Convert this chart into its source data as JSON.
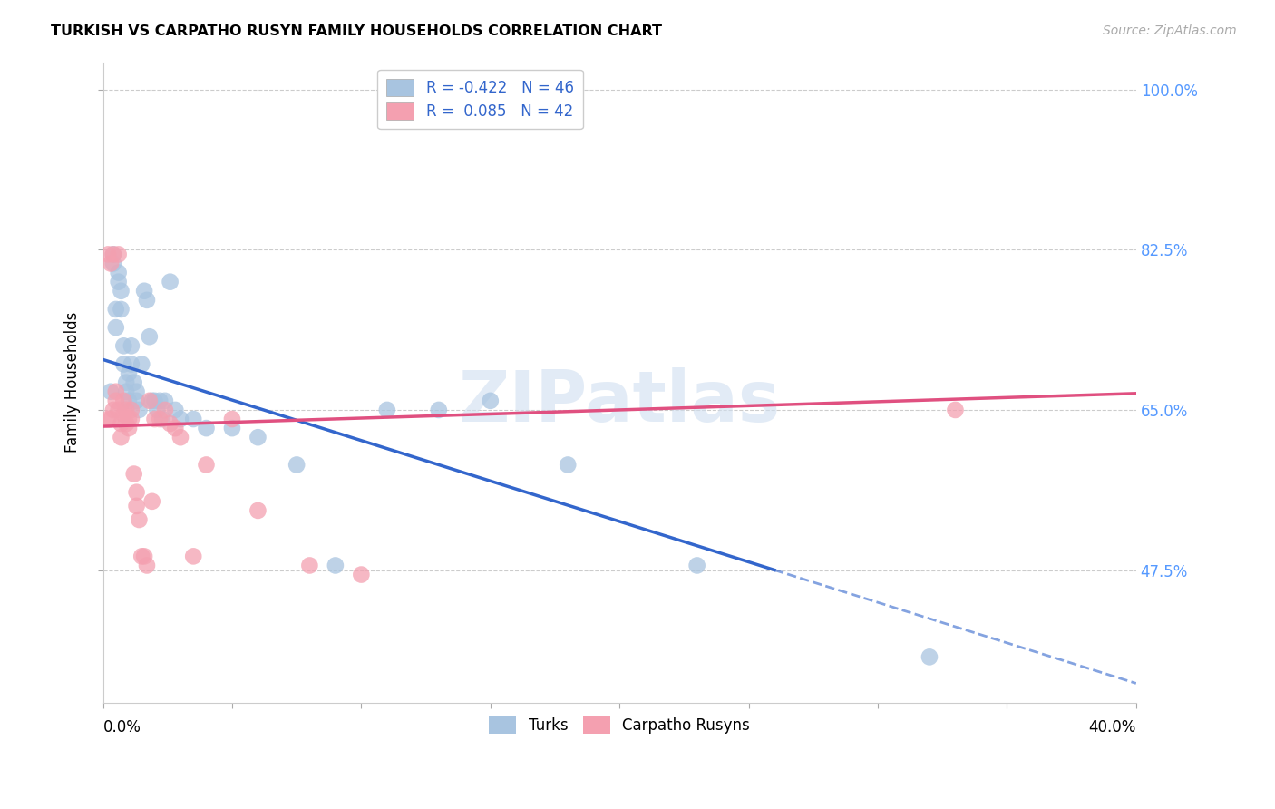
{
  "title": "TURKISH VS CARPATHO RUSYN FAMILY HOUSEHOLDS CORRELATION CHART",
  "source": "Source: ZipAtlas.com",
  "ylabel": "Family Households",
  "y_ticks": [
    0.475,
    0.65,
    0.825,
    1.0
  ],
  "y_tick_labels": [
    "47.5%",
    "65.0%",
    "82.5%",
    "100.0%"
  ],
  "x_range": [
    0.0,
    0.4
  ],
  "y_range": [
    0.33,
    1.03
  ],
  "turks_color": "#a8c4e0",
  "rusyn_color": "#f4a0b0",
  "trend_blue": "#3366cc",
  "trend_pink": "#e05080",
  "watermark": "ZIPatlas",
  "blue_line_x0": 0.0,
  "blue_line_y0": 0.705,
  "blue_line_x1": 0.26,
  "blue_line_y1": 0.475,
  "blue_line_solid_end": 0.26,
  "blue_line_dash_end": 0.4,
  "pink_line_x0": 0.0,
  "pink_line_y0": 0.632,
  "pink_line_x1": 0.4,
  "pink_line_y1": 0.668,
  "turks_x": [
    0.003,
    0.004,
    0.004,
    0.005,
    0.005,
    0.006,
    0.006,
    0.007,
    0.007,
    0.008,
    0.008,
    0.009,
    0.009,
    0.01,
    0.01,
    0.011,
    0.011,
    0.012,
    0.013,
    0.013,
    0.014,
    0.015,
    0.016,
    0.017,
    0.018,
    0.019,
    0.02,
    0.021,
    0.022,
    0.023,
    0.024,
    0.026,
    0.028,
    0.03,
    0.035,
    0.04,
    0.05,
    0.06,
    0.075,
    0.09,
    0.11,
    0.13,
    0.15,
    0.18,
    0.23,
    0.32
  ],
  "turks_y": [
    0.67,
    0.82,
    0.81,
    0.76,
    0.74,
    0.8,
    0.79,
    0.76,
    0.78,
    0.72,
    0.7,
    0.68,
    0.67,
    0.66,
    0.69,
    0.72,
    0.7,
    0.68,
    0.67,
    0.66,
    0.65,
    0.7,
    0.78,
    0.77,
    0.73,
    0.66,
    0.66,
    0.65,
    0.66,
    0.64,
    0.66,
    0.79,
    0.65,
    0.64,
    0.64,
    0.63,
    0.63,
    0.62,
    0.59,
    0.48,
    0.65,
    0.65,
    0.66,
    0.59,
    0.48,
    0.38
  ],
  "rusyn_x": [
    0.002,
    0.002,
    0.003,
    0.003,
    0.004,
    0.004,
    0.005,
    0.005,
    0.006,
    0.006,
    0.007,
    0.007,
    0.008,
    0.008,
    0.009,
    0.009,
    0.01,
    0.01,
    0.011,
    0.011,
    0.012,
    0.013,
    0.013,
    0.014,
    0.015,
    0.016,
    0.017,
    0.018,
    0.019,
    0.02,
    0.022,
    0.024,
    0.026,
    0.028,
    0.03,
    0.035,
    0.04,
    0.05,
    0.06,
    0.08,
    0.1,
    0.33
  ],
  "rusyn_y": [
    0.64,
    0.82,
    0.81,
    0.64,
    0.65,
    0.82,
    0.67,
    0.66,
    0.65,
    0.82,
    0.635,
    0.62,
    0.66,
    0.645,
    0.65,
    0.635,
    0.64,
    0.63,
    0.65,
    0.64,
    0.58,
    0.56,
    0.545,
    0.53,
    0.49,
    0.49,
    0.48,
    0.66,
    0.55,
    0.64,
    0.64,
    0.65,
    0.635,
    0.63,
    0.62,
    0.49,
    0.59,
    0.64,
    0.54,
    0.48,
    0.47,
    0.65
  ]
}
